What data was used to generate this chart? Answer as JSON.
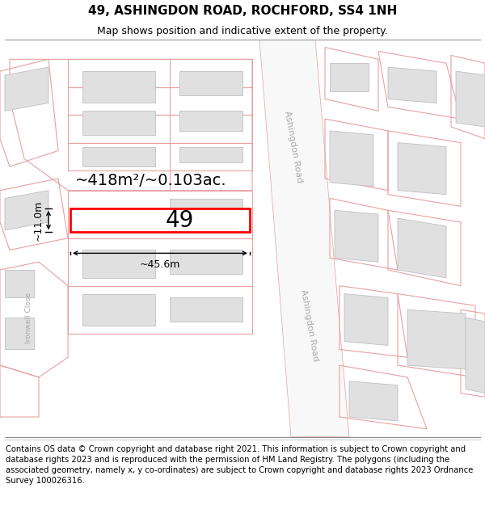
{
  "title": "49, ASHINGDON ROAD, ROCHFORD, SS4 1NH",
  "subtitle": "Map shows position and indicative extent of the property.",
  "footer": "Contains OS data © Crown copyright and database right 2021. This information is subject to Crown copyright and database rights 2023 and is reproduced with the permission of HM Land Registry. The polygons (including the associated geometry, namely x, y co-ordinates) are subject to Crown copyright and database rights 2023 Ordnance Survey 100026316.",
  "map_bg": "#ffffff",
  "road_label_color": "#aaaaaa",
  "plot_edge": "#e8a0a0",
  "plot_edge_lw": 0.8,
  "building_fill": "#e0e0e0",
  "building_edge": "#c0c0c0",
  "building_lw": 0.6,
  "target_fill": "#ffffff",
  "target_outline": "#ff0000",
  "target_lw": 2.0,
  "dim_color": "#000000",
  "area_text": "~418m²/~0.103ac.",
  "width_text": "~45.6m",
  "height_text": "~11.0m",
  "house_number": "49",
  "title_fontsize": 11,
  "subtitle_fontsize": 9,
  "footer_fontsize": 7.2,
  "area_fontsize": 14,
  "number_fontsize": 20
}
